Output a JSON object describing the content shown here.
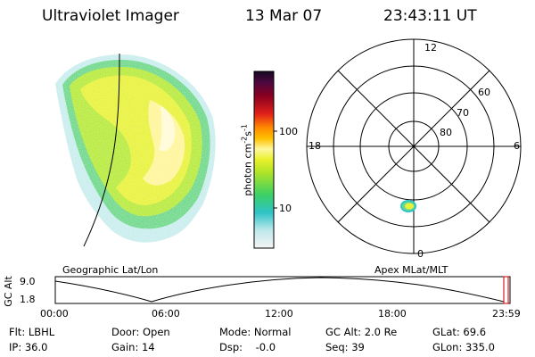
{
  "header": {
    "title": "Ultraviolet Imager",
    "date": "13 Mar 07",
    "time": "23:43:11 UT"
  },
  "colorbar": {
    "label": "photon cm",
    "label_exp1": "-2",
    "label_s": "s",
    "label_exp2": "-1",
    "ticks": [
      "100",
      "10"
    ]
  },
  "polar": {
    "mlt_labels": [
      "12",
      "18",
      "6",
      "0"
    ],
    "lat_labels": [
      "60",
      "70",
      "80"
    ]
  },
  "map": {
    "left_title": "Geographic Lat/Lon",
    "right_title": "Apex MLat/MLT"
  },
  "altitude_plot": {
    "ylabel": "GC Alt",
    "yticks": [
      "9.0",
      "1.8"
    ],
    "xticks": [
      "00:00",
      "06:00",
      "12:00",
      "18:00",
      "23:59"
    ]
  },
  "info": {
    "row1": [
      "Flt: LBHL",
      "Door: Open",
      "Mode: Normal",
      "GC Alt: 2.0 Re",
      "GLat:  69.6"
    ],
    "row2": [
      "IP: 36.0",
      "Gain: 14",
      "Dsp:    -0.0",
      "Seq: 39",
      "GLon: 335.0"
    ]
  },
  "colors": {
    "colorbar_top": "#1a0a2a",
    "colorbar_mid": "#ffea00",
    "colorbar_low": "#29c7c7",
    "marker": "#d62020"
  }
}
